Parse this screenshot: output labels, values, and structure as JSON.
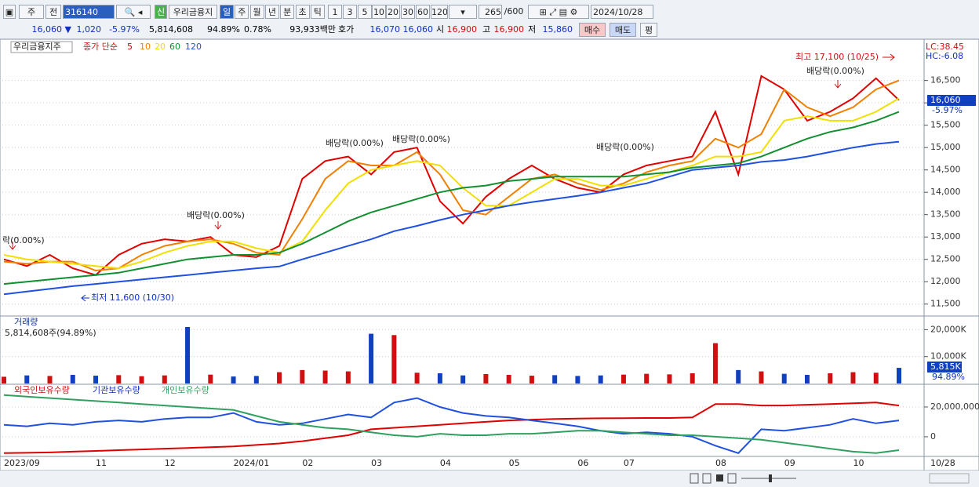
{
  "toolbar": {
    "period": "주",
    "mode": "전",
    "code": "316140",
    "badge": "신",
    "name": "우리금융지",
    "intervals": [
      "일",
      "주",
      "월",
      "년",
      "분",
      "초",
      "틱"
    ],
    "counts": [
      "1",
      "3",
      "5",
      "10",
      "20",
      "30",
      "60",
      "120"
    ],
    "view_count": "265",
    "view_total": "/600",
    "date": "2024/10/28"
  },
  "quote": {
    "price": "16,060 ▼",
    "change": "1,020",
    "change_pct": "-5.97%",
    "volume": "5,814,608",
    "volume_ratio": "94.89%",
    "turnover": "0.78%",
    "amount": "93,933백만",
    "ask_label": "호가",
    "ask": "16,070",
    "bid": "16,060",
    "open_label": "시",
    "open": "16,900",
    "high_label": "고",
    "high": "16,900",
    "low_label": "저",
    "low": "15,860",
    "buttons": [
      "매수",
      "매도",
      "평"
    ]
  },
  "chart_data": [
    {
      "type": "line",
      "title": "우리금융지주",
      "subtitle": "종가 단순",
      "categories": [
        "2023/09",
        null,
        null,
        null,
        "11",
        null,
        null,
        "12",
        null,
        null,
        "2024/01",
        null,
        null,
        "02",
        null,
        null,
        "03",
        null,
        null,
        "04",
        null,
        null,
        "05",
        null,
        null,
        "06",
        null,
        "07",
        null,
        null,
        null,
        "08",
        null,
        null,
        "09",
        null,
        null,
        "10",
        null,
        null
      ],
      "x_end_label": "10/28",
      "series": [
        {
          "name": "5",
          "color": "#e00000",
          "values": [
            12500,
            12350,
            12600,
            12300,
            12150,
            12600,
            12850,
            12950,
            12900,
            13000,
            12600,
            12550,
            12800,
            14300,
            14700,
            14800,
            14400,
            14900,
            15000,
            13800,
            13300,
            13900,
            14300,
            14600,
            14300,
            14100,
            14000,
            14400,
            14600,
            14700,
            14800,
            15800,
            14400,
            16600,
            16300,
            15600,
            15800,
            16100,
            16550,
            16060
          ]
        },
        {
          "name": "10",
          "color": "#f08000",
          "values": [
            12450,
            12400,
            12450,
            12450,
            12250,
            12300,
            12600,
            12800,
            12900,
            12950,
            12850,
            12650,
            12600,
            13400,
            14300,
            14700,
            14600,
            14600,
            14900,
            14400,
            13600,
            13500,
            13900,
            14300,
            14400,
            14200,
            14050,
            14200,
            14450,
            14600,
            14700,
            15200,
            15000,
            15300,
            16300,
            15900,
            15700,
            15900,
            16300,
            16500
          ]
        },
        {
          "name": "20",
          "color": "#f0e000",
          "values": [
            12600,
            12500,
            12450,
            12400,
            12350,
            12300,
            12450,
            12650,
            12800,
            12900,
            12900,
            12750,
            12650,
            12900,
            13600,
            14200,
            14500,
            14600,
            14700,
            14600,
            14100,
            13700,
            13700,
            14000,
            14300,
            14300,
            14150,
            14150,
            14300,
            14450,
            14600,
            14800,
            14800,
            14900,
            15600,
            15700,
            15600,
            15600,
            15800,
            16100
          ]
        },
        {
          "name": "60",
          "color": "#109030",
          "values": [
            11950,
            12000,
            12050,
            12100,
            12150,
            12200,
            12300,
            12400,
            12500,
            12550,
            12600,
            12600,
            12650,
            12850,
            13100,
            13350,
            13550,
            13700,
            13850,
            14000,
            14100,
            14150,
            14250,
            14300,
            14350,
            14350,
            14350,
            14350,
            14400,
            14450,
            14550,
            14600,
            14650,
            14800,
            15000,
            15200,
            15350,
            15450,
            15600,
            15800
          ]
        },
        {
          "name": "120",
          "color": "#2050e0",
          "values": [
            11720,
            11780,
            11840,
            11900,
            11950,
            12000,
            12050,
            12100,
            12150,
            12200,
            12250,
            12300,
            12340,
            12500,
            12650,
            12800,
            12950,
            13130,
            13250,
            13380,
            13500,
            13600,
            13700,
            13780,
            13850,
            13920,
            14000,
            14100,
            14200,
            14350,
            14500,
            14550,
            14600,
            14680,
            14720,
            14800,
            14900,
            15000,
            15080,
            15130
          ]
        }
      ],
      "ylim": [
        11250,
        17300
      ],
      "yticks": [
        {
          "value": 16500,
          "label": "16,500"
        },
        {
          "value": 16000,
          "label": "16,000"
        },
        {
          "value": 15500,
          "label": "15,500"
        },
        {
          "value": 15000,
          "label": "15,000"
        },
        {
          "value": 14500,
          "label": "14,500"
        },
        {
          "value": 14000,
          "label": "14,000"
        },
        {
          "value": 13500,
          "label": "13,500"
        },
        {
          "value": 13000,
          "label": "13,000"
        },
        {
          "value": 12500,
          "label": "12,500"
        },
        {
          "value": 12000,
          "label": "12,000"
        },
        {
          "value": 11500,
          "label": "11,500"
        }
      ],
      "grid": true,
      "annotations": [
        "락(0.00%)",
        "배당락(0.00%)",
        "배당락(0.00%)",
        "배당락(0.00%)",
        "배당락(0.00%)",
        "배당락(0.00%)",
        "최고 17,100 (10/25)",
        "최저 11,600 (10/30)"
      ],
      "right_labels": [
        "LC:38.45",
        "HC:-6.08"
      ],
      "last_price": "16,060",
      "last_change": "-5.97%"
    },
    {
      "type": "bar",
      "title": "거래량",
      "subtitle": "5,814,608주(94.89%)",
      "up_color": "#d01010",
      "down_color": "#1040c0",
      "values": [
        2500,
        3000,
        2800,
        3200,
        2900,
        3100,
        2700,
        3000,
        21000,
        3300,
        2600,
        2800,
        4200,
        5000,
        4800,
        4500,
        18500,
        18000,
        4000,
        3800,
        3000,
        3500,
        3200,
        2900,
        3100,
        2800,
        3000,
        3300,
        3600,
        3400,
        3800,
        15000,
        5000,
        4500,
        3600,
        3200,
        3800,
        4200,
        4000,
        5815
      ],
      "ylim": [
        0,
        24500
      ],
      "yticks": [
        {
          "value": 20000,
          "label": "20,000K"
        },
        {
          "value": 10000,
          "label": "10,000K"
        }
      ],
      "last_label": "5,815K",
      "last_ratio": "94.89%"
    },
    {
      "type": "line",
      "series": [
        {
          "name": "외국인보유수량",
          "color": "#e00000",
          "values": [
            -11000000,
            -10800000,
            -10500000,
            -10000000,
            -9500000,
            -9000000,
            -8500000,
            -8000000,
            -7500000,
            -7000000,
            -6500000,
            -5500000,
            -4500000,
            -3000000,
            -1000000,
            1000000,
            5000000,
            6000000,
            7000000,
            8000000,
            9000000,
            10000000,
            11000000,
            11500000,
            12000000,
            12200000,
            12400000,
            12500000,
            12600000,
            12600000,
            13000000,
            22000000,
            22000000,
            21000000,
            21000000,
            21500000,
            22000000,
            22500000,
            23000000,
            21000000
          ]
        },
        {
          "name": "기관보유수량",
          "color": "#2050e0",
          "values": [
            8000000,
            7000000,
            9000000,
            8000000,
            10000000,
            11000000,
            10000000,
            12000000,
            13000000,
            13000000,
            16000000,
            10000000,
            8000000,
            9000000,
            12000000,
            15000000,
            13000000,
            23000000,
            26000000,
            20000000,
            16000000,
            14000000,
            13000000,
            11000000,
            9000000,
            7000000,
            4000000,
            2000000,
            3000000,
            2000000,
            0,
            -6000000,
            -11000000,
            5000000,
            4000000,
            6000000,
            8000000,
            12000000,
            9000000,
            11000000
          ]
        },
        {
          "name": "개인보유수량",
          "color": "#30a060",
          "values": [
            28000000,
            27000000,
            26000000,
            25000000,
            24000000,
            23000000,
            22000000,
            21000000,
            20000000,
            19000000,
            18000000,
            14000000,
            10000000,
            8000000,
            6000000,
            5000000,
            3000000,
            1000000,
            0,
            2000000,
            1000000,
            1000000,
            2000000,
            2000000,
            3000000,
            4000000,
            4000000,
            3000000,
            2000000,
            1000000,
            1000000,
            0,
            -1000000,
            -2000000,
            -4000000,
            -6000000,
            -8000000,
            -10000000,
            -11000000,
            -9000000
          ]
        }
      ],
      "ylim": [
        -13200000,
        34200000
      ],
      "yticks": [
        {
          "value": 20000000,
          "label": "20,000,000"
        },
        0
      ]
    }
  ]
}
